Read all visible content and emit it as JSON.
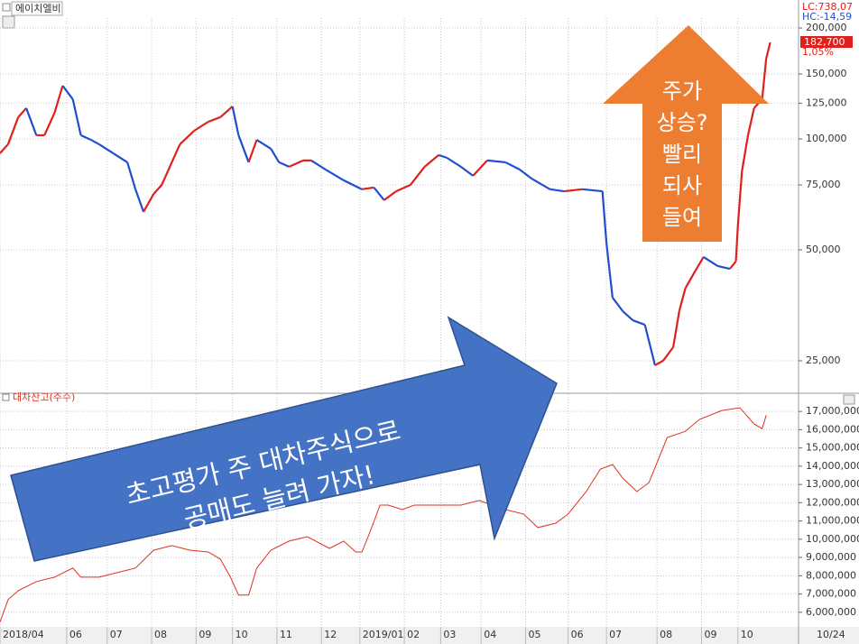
{
  "chart_data": [
    {
      "type": "candle-line",
      "title": "에이치엘비",
      "yscale": "log",
      "up_color": "#e0201b",
      "down_color": "#1f4fd0",
      "info": [
        "LC:738,07",
        "HC:-14,59",
        "1,05%"
      ],
      "last_price_label": "182,700",
      "x": [
        0,
        4,
        9,
        13,
        18,
        22,
        27,
        31,
        36,
        40,
        45,
        49,
        56,
        63,
        67,
        71,
        76,
        80,
        85,
        89,
        96,
        103,
        109,
        115,
        118,
        123,
        127,
        134,
        138,
        143,
        150,
        154,
        161,
        170,
        179,
        185,
        190,
        196,
        203,
        210,
        217,
        221,
        228,
        234,
        241,
        250,
        257,
        263,
        272,
        279,
        288,
        298,
        300,
        303,
        308,
        313,
        319,
        324,
        328,
        333,
        336,
        339,
        344,
        348,
        355,
        361,
        364,
        365,
        367,
        370,
        373,
        377,
        379,
        381
      ],
      "values": [
        91400,
        96700,
        114500,
        121200,
        102300,
        102300,
        117800,
        139400,
        128200,
        102300,
        99400,
        96700,
        91400,
        86400,
        73000,
        63400,
        70900,
        75000,
        86400,
        96700,
        105200,
        111300,
        114500,
        122500,
        102300,
        86400,
        99400,
        94000,
        86400,
        84000,
        87400,
        87400,
        82600,
        77200,
        73000,
        73800,
        68200,
        72100,
        75000,
        84000,
        90400,
        88900,
        84000,
        79400,
        87400,
        86400,
        82600,
        78000,
        73000,
        72100,
        73000,
        72100,
        52000,
        37100,
        34100,
        32200,
        31300,
        24300,
        25000,
        27200,
        34100,
        39300,
        43900,
        47800,
        45200,
        44400,
        46500,
        58200,
        81600,
        102300,
        121200,
        128200,
        165100,
        182700
      ],
      "xlim": [
        0,
        395
      ],
      "ylim": [
        20870,
        212800
      ],
      "yticks": [
        {
          "value": 25000,
          "label": "25,000"
        },
        {
          "value": 50000,
          "label": "50,000"
        },
        {
          "value": 75000,
          "label": "75,000"
        },
        {
          "value": 100000,
          "label": "100,000"
        },
        {
          "value": 125000,
          "label": "125,000"
        },
        {
          "value": 150000,
          "label": "150,000"
        },
        {
          "value": 200000,
          "label": "200,000"
        }
      ],
      "grid": true,
      "annotations": [
        {
          "lines": [
            "주가",
            "상승?",
            "빨리",
            "되사",
            "들여"
          ]
        },
        {
          "lines": [
            "초고평가 주 대차주식으로",
            "공매도 늘려 가자!"
          ]
        }
      ]
    },
    {
      "type": "line",
      "title": "대차잔고(주수)",
      "color": "#e03020",
      "x": [
        0,
        4,
        9,
        18,
        27,
        36,
        40,
        49,
        58,
        67,
        76,
        85,
        94,
        103,
        109,
        114,
        118,
        123,
        127,
        134,
        143,
        152,
        163,
        170,
        176,
        179,
        183,
        188,
        192,
        199,
        205,
        219,
        228,
        237,
        250,
        259,
        266,
        275,
        281,
        290,
        297,
        303,
        308,
        315,
        321,
        330,
        339,
        346,
        357,
        366,
        373,
        377,
        379
      ],
      "values": [
        5460000,
        6690000,
        7180000,
        7680000,
        7920000,
        8420000,
        7920000,
        7920000,
        8170000,
        8420000,
        9400000,
        9650000,
        9400000,
        9300000,
        8910000,
        7920000,
        6940000,
        6940000,
        8420000,
        9400000,
        9900000,
        10140000,
        9500000,
        9900000,
        9300000,
        9300000,
        10390000,
        11870000,
        11870000,
        11620000,
        11870000,
        11870000,
        11870000,
        12120000,
        11620000,
        11380000,
        10640000,
        10880000,
        11380000,
        12610000,
        13840000,
        14090000,
        13350000,
        12610000,
        13100000,
        15570000,
        15910000,
        16560000,
        17050000,
        17200000,
        16310000,
        16060000,
        16800000
      ],
      "xlim": [
        0,
        395
      ],
      "ylim": [
        5200000,
        17550000
      ],
      "yticks": [
        {
          "value": 6000000,
          "label": "6,000,000"
        },
        {
          "value": 7000000,
          "label": "7,000,000"
        },
        {
          "value": 8000000,
          "label": "8,000,000"
        },
        {
          "value": 9000000,
          "label": "9,000,000"
        },
        {
          "value": 10000000,
          "label": "10,000,000"
        },
        {
          "value": 11000000,
          "label": "11,000,000"
        },
        {
          "value": 12000000,
          "label": "12,000,000"
        },
        {
          "value": 13000000,
          "label": "13,000,000"
        },
        {
          "value": 14000000,
          "label": "14,000,000"
        },
        {
          "value": 15000000,
          "label": "15,000,000"
        },
        {
          "value": 16000000,
          "label": "16,000,000"
        },
        {
          "value": 17000000,
          "label": "17,000,000"
        }
      ],
      "xticks": [
        {
          "value": 0,
          "label": "2018/04"
        },
        {
          "value": 33,
          "label": "06"
        },
        {
          "value": 53,
          "label": "07"
        },
        {
          "value": 75,
          "label": "08"
        },
        {
          "value": 97,
          "label": "09"
        },
        {
          "value": 115,
          "label": "10"
        },
        {
          "value": 137,
          "label": "11"
        },
        {
          "value": 159,
          "label": "12"
        },
        {
          "value": 178,
          "label": "2019/01"
        },
        {
          "value": 200,
          "label": "02"
        },
        {
          "value": 218,
          "label": "03"
        },
        {
          "value": 238,
          "label": "04"
        },
        {
          "value": 260,
          "label": "05"
        },
        {
          "value": 281,
          "label": "06"
        },
        {
          "value": 300,
          "label": "07"
        },
        {
          "value": 325,
          "label": "08"
        },
        {
          "value": 347,
          "label": "09"
        },
        {
          "value": 365,
          "label": "10"
        }
      ],
      "current_date": "10/24",
      "grid": true
    }
  ]
}
